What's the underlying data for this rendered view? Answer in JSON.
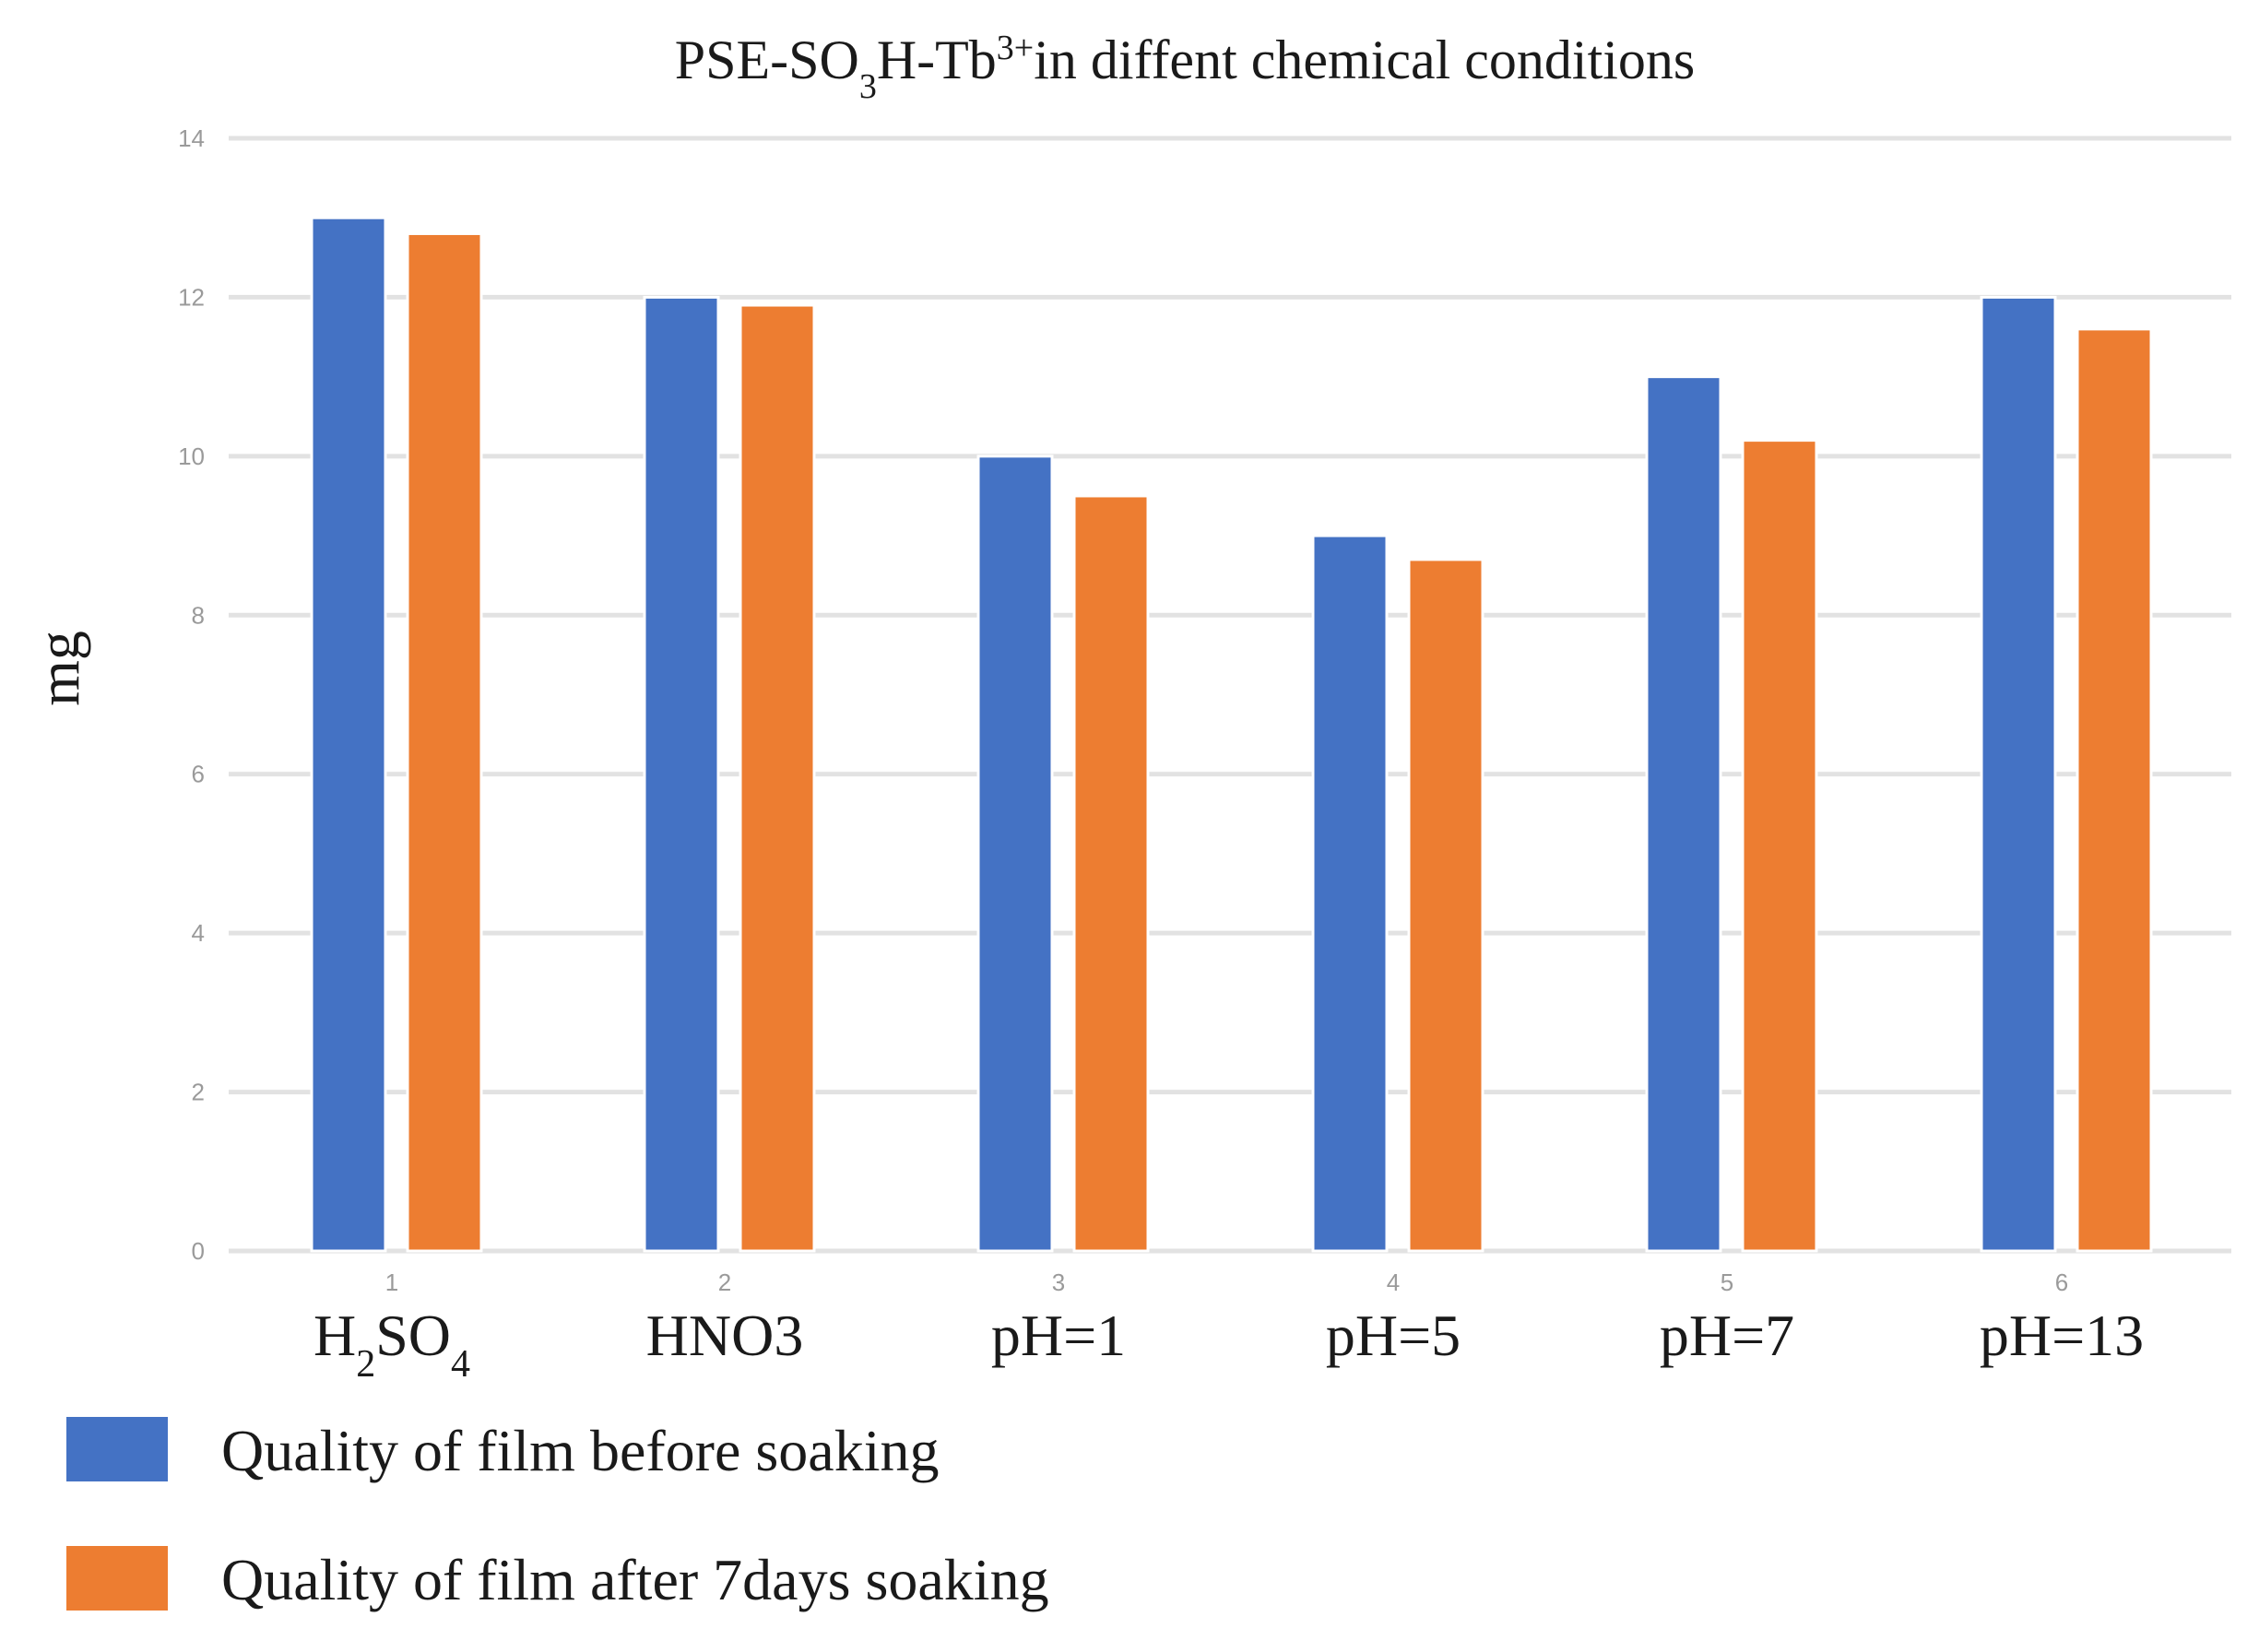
{
  "chart_data": {
    "type": "bar",
    "title": {
      "prefix": "PSE-SO",
      "sub1": "3",
      "mid": "H-Tb",
      "sup": "3+",
      "suffix": "in diffent chemical conditions"
    },
    "ylabel": "mg",
    "xlabel": "",
    "ylim": [
      0,
      14
    ],
    "yticks": [
      "0",
      "2",
      "4",
      "6",
      "8",
      "10",
      "12",
      "14"
    ],
    "grid": true,
    "legend_position": "bottom-left",
    "category_indices": [
      "1",
      "2",
      "3",
      "4",
      "5",
      "6"
    ],
    "categories": [
      {
        "text": "H2SO4",
        "parts": [
          [
            "H",
            ""
          ],
          [
            "2",
            "sub"
          ],
          [
            "SO",
            ""
          ],
          [
            "4",
            "sub"
          ]
        ]
      },
      {
        "text": "HNO3",
        "parts": [
          [
            "HNO3",
            ""
          ]
        ]
      },
      {
        "text": "pH=1",
        "parts": [
          [
            "pH=1",
            ""
          ]
        ]
      },
      {
        "text": "pH=5",
        "parts": [
          [
            "pH=5",
            ""
          ]
        ]
      },
      {
        "text": "pH=7",
        "parts": [
          [
            "pH=7",
            ""
          ]
        ]
      },
      {
        "text": "pH=13",
        "parts": [
          [
            "pH=13",
            ""
          ]
        ]
      }
    ],
    "series": [
      {
        "name": "Quality of film before soaking",
        "color": "#4472c4",
        "values": [
          13.0,
          12.0,
          10.0,
          9.0,
          11.0,
          12.0
        ]
      },
      {
        "name": "Quality of film after 7days soaking",
        "color": "#ed7d31",
        "values": [
          12.8,
          11.9,
          9.5,
          8.7,
          10.2,
          11.6
        ]
      }
    ]
  }
}
